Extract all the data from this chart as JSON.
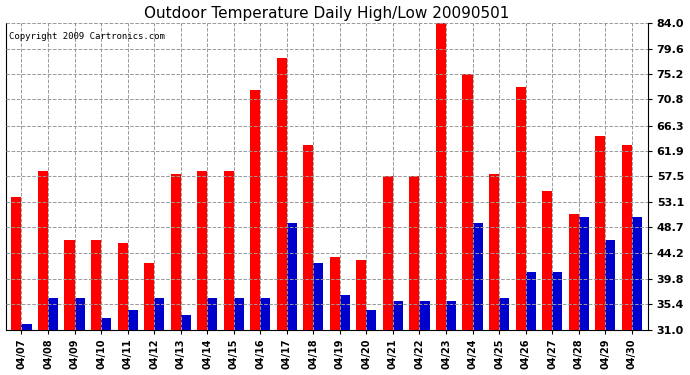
{
  "title": "Outdoor Temperature Daily High/Low 20090501",
  "copyright_text": "Copyright 2009 Cartronics.com",
  "dates": [
    "04/07",
    "04/08",
    "04/09",
    "04/10",
    "04/11",
    "04/12",
    "04/13",
    "04/14",
    "04/15",
    "04/16",
    "04/17",
    "04/18",
    "04/19",
    "04/20",
    "04/21",
    "04/22",
    "04/23",
    "04/24",
    "04/25",
    "04/26",
    "04/27",
    "04/28",
    "04/29",
    "04/30"
  ],
  "highs": [
    54.0,
    58.5,
    46.5,
    46.5,
    46.0,
    42.5,
    58.0,
    58.5,
    58.5,
    72.5,
    78.0,
    63.0,
    43.5,
    43.0,
    57.5,
    57.5,
    84.0,
    75.2,
    58.0,
    73.0,
    55.0,
    51.0,
    64.5,
    63.0
  ],
  "lows": [
    32.0,
    36.5,
    36.5,
    33.0,
    34.5,
    36.5,
    33.5,
    36.5,
    36.5,
    36.5,
    49.5,
    42.5,
    37.0,
    34.5,
    36.0,
    36.0,
    36.0,
    49.5,
    36.5,
    41.0,
    41.0,
    50.5,
    46.5,
    50.5
  ],
  "high_color": "#ff0000",
  "low_color": "#0000cc",
  "background_color": "#ffffff",
  "plot_bg_color": "#ffffff",
  "grid_color": "#999999",
  "yticks": [
    31.0,
    35.4,
    39.8,
    44.2,
    48.7,
    53.1,
    57.5,
    61.9,
    66.3,
    70.8,
    75.2,
    79.6,
    84.0
  ],
  "ymin": 31.0,
  "ymax": 84.0,
  "bar_width": 0.38
}
